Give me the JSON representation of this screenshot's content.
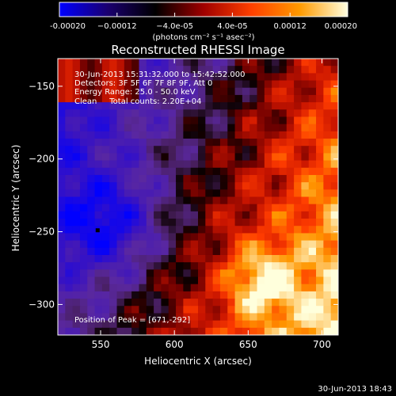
{
  "chart_data": {
    "type": "heatmap",
    "title": "Reconstructed RHESSI Image",
    "xlabel": "Heliocentric X (arcsec)",
    "ylabel": "Heliocentric Y (arcsec)",
    "xlim": [
      521,
      711
    ],
    "ylim": [
      -321,
      -131
    ],
    "x_ticks": [
      550,
      600,
      650,
      700
    ],
    "x_tick_labels": [
      "550",
      "600",
      "650",
      "700"
    ],
    "y_ticks": [
      -150,
      -200,
      -250,
      -300
    ],
    "y_tick_labels": [
      "−150",
      "−200",
      "−250",
      "−300"
    ],
    "colorbar": {
      "range": [
        -0.0002,
        0.0002
      ],
      "ticks": [
        -0.0002,
        -0.00012,
        -4e-05,
        4e-05,
        0.00012,
        0.0002
      ],
      "tick_labels": [
        "-0.00020",
        "−0.00012",
        "−4.0e-05",
        "4.0e-05",
        "0.00012",
        "0.00020"
      ],
      "label": "(photons cm⁻² s⁻¹ asec⁻²)",
      "colors": [
        "#0000ff",
        "#1a0070",
        "#000000",
        "#a00000",
        "#ff4000",
        "#ff9a00",
        "#ffffe0"
      ]
    },
    "annotations": [
      "30-Jun-2013 15:31:32.000 to 15:42:52.000",
      "Detectors: 3F 5F 6F 7F 8F 9F, Att 0",
      "Energy Range: 25.0 - 50.0 keV",
      "Clean     Total counts: 2.20E+04"
    ],
    "peak_label": "Position of Peak = [671,-292]",
    "peak": [
      671,
      -292
    ],
    "marker": [
      548,
      -249
    ],
    "grid": false
  },
  "footer_timestamp": "30-Jun-2013 18:43"
}
